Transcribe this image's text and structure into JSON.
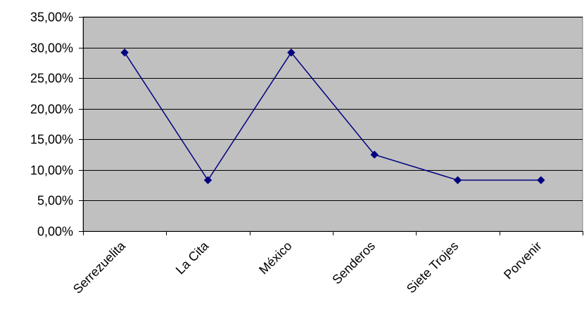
{
  "chart_data": {
    "type": "line",
    "categories": [
      "Serrezuelita",
      "La Cita",
      "México",
      "Senderos",
      "Siete Trojes",
      "Porvenir"
    ],
    "series": [
      {
        "values": [
          29.17,
          8.33,
          29.17,
          12.5,
          8.33,
          8.33
        ]
      }
    ],
    "y_ticks": [
      "0,00%",
      "5,00%",
      "10,00%",
      "15,00%",
      "20,00%",
      "25,00%",
      "30,00%",
      "35,00%"
    ],
    "ylim": [
      0,
      35
    ],
    "ytick_step": 5,
    "grid": true,
    "title": "",
    "xlabel": "",
    "ylabel": "",
    "colors": {
      "plot_bg": "#c0c0c0",
      "line": "#000080",
      "grid": "#000000"
    }
  }
}
